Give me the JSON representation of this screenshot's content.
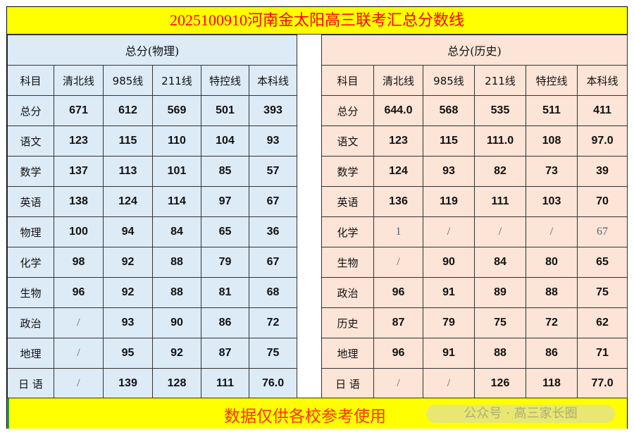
{
  "title": "2025100910河南金太阳高三联考汇总分数线",
  "columns": [
    "科目",
    "清北线",
    "985线",
    "211线",
    "特控线",
    "本科线"
  ],
  "physics": {
    "header": "总分(物理)",
    "rows": [
      [
        "总分",
        "671",
        "612",
        "569",
        "501",
        "393"
      ],
      [
        "语文",
        "123",
        "115",
        "110",
        "104",
        "93"
      ],
      [
        "数学",
        "137",
        "113",
        "101",
        "85",
        "57"
      ],
      [
        "英语",
        "138",
        "124",
        "114",
        "97",
        "67"
      ],
      [
        "物理",
        "100",
        "94",
        "84",
        "65",
        "36"
      ],
      [
        "化学",
        "98",
        "92",
        "88",
        "79",
        "67"
      ],
      [
        "生物",
        "96",
        "92",
        "88",
        "81",
        "68"
      ],
      [
        "政治",
        "/",
        "93",
        "90",
        "86",
        "72"
      ],
      [
        "地理",
        "/",
        "95",
        "92",
        "87",
        "75"
      ],
      [
        "日 语",
        "/",
        "139",
        "128",
        "111",
        "76.0"
      ]
    ]
  },
  "history": {
    "header": "总分(历史)",
    "rows": [
      [
        "总分",
        "644.0",
        "568",
        "535",
        "511",
        "411"
      ],
      [
        "语文",
        "123",
        "115",
        "111.0",
        "108",
        "97.0"
      ],
      [
        "数学",
        "124",
        "93",
        "82",
        "73",
        "39"
      ],
      [
        "英语",
        "136",
        "119",
        "111",
        "103",
        "70"
      ],
      [
        "化学",
        "1",
        "/",
        "/",
        "/",
        "67"
      ],
      [
        "生物",
        "/",
        "90",
        "84",
        "80",
        "65"
      ],
      [
        "政治",
        "96",
        "91",
        "89",
        "88",
        "75"
      ],
      [
        "历史",
        "87",
        "79",
        "75",
        "72",
        "62"
      ],
      [
        "地理",
        "96",
        "91",
        "88",
        "86",
        "71"
      ],
      [
        "日 语",
        "/",
        "/",
        "126",
        "118",
        "77.0"
      ]
    ]
  },
  "footer": {
    "text": "数据仅供各校参考使用",
    "watermark": "公众号 · 高三家长圈"
  },
  "colors": {
    "title_bg": "#ffff00",
    "title_text": "#ff0000",
    "physics_bg": "#ddebf7",
    "history_bg": "#fce4d6",
    "footer_text": "#ff3300"
  }
}
